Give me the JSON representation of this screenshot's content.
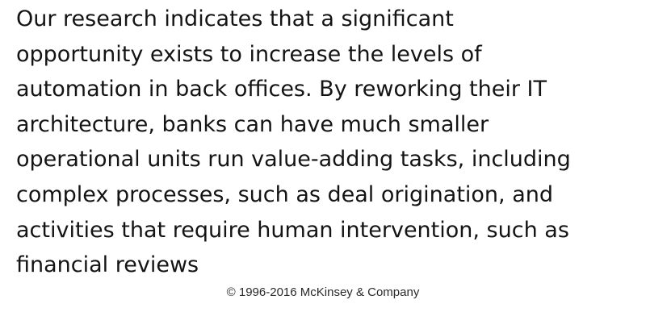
{
  "quote": {
    "lines": [
      "Our research indicates that a significant",
      "opportunity exists to increase the levels of",
      "automation in back offices. By reworking their IT",
      "architecture, banks can have much smaller",
      "operational units run value-adding tasks, including",
      "complex processes, such as deal origination, and",
      "activities that require human intervention, such as",
      "financial reviews"
    ]
  },
  "footer": {
    "copyright": "© 1996-2016 McKinsey & Company"
  }
}
